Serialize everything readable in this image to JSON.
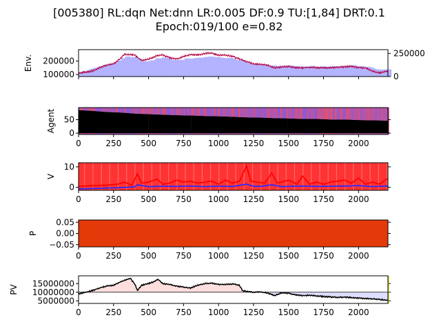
{
  "figure": {
    "title_line1": "[005380] RL:dqn Net:dnn LR:0.005 DF:0.9 TU:[1,84] DRT:0.1",
    "title_line2": "Epoch:019/100 e=0.82"
  },
  "chart_data": [
    {
      "type": "line",
      "id": "env",
      "ylabel": "Env.",
      "xlim": [
        0,
        2210
      ],
      "ylim": [
        85000,
        285000
      ],
      "yticks": [
        100000,
        200000
      ],
      "yticklabels": [
        "100000",
        "200000"
      ],
      "y2lim": [
        0,
        290000
      ],
      "y2ticks": [
        0,
        250000
      ],
      "y2ticklabels": [
        "0",
        "250000"
      ],
      "show_xticklabels": false,
      "series": [
        {
          "role": "price",
          "color": "#ff0000",
          "x": [
            0,
            100,
            150,
            200,
            250,
            300,
            330,
            400,
            450,
            500,
            560,
            600,
            650,
            700,
            750,
            800,
            850,
            900,
            950,
            1000,
            1050,
            1100,
            1150,
            1200,
            1250,
            1300,
            1350,
            1400,
            1450,
            1500,
            1550,
            1600,
            1650,
            1700,
            1750,
            1800,
            1850,
            1900,
            1950,
            2000,
            2050,
            2100,
            2150,
            2200
          ],
          "y": [
            110000,
            125000,
            150000,
            170000,
            180000,
            220000,
            250000,
            245000,
            205000,
            215000,
            240000,
            245000,
            225000,
            215000,
            235000,
            250000,
            245000,
            255000,
            260000,
            245000,
            245000,
            235000,
            215000,
            195000,
            180000,
            178000,
            170000,
            150000,
            155000,
            160000,
            152000,
            150000,
            155000,
            150000,
            148000,
            150000,
            155000,
            158000,
            160000,
            150000,
            148000,
            125000,
            112000,
            125000
          ]
        },
        {
          "role": "volume_bars",
          "color": "#b3b3ff",
          "x": [
            0,
            100,
            150,
            200,
            250,
            300,
            330,
            400,
            450,
            500,
            560,
            600,
            650,
            700,
            750,
            800,
            850,
            900,
            950,
            1000,
            1050,
            1100,
            1150,
            1200,
            1250,
            1300,
            1350,
            1400,
            1450,
            1500,
            1550,
            1600,
            1650,
            1700,
            1750,
            1800,
            1850,
            1900,
            1950,
            2000,
            2050,
            2100,
            2150,
            2200
          ],
          "y": [
            40000,
            90000,
            110000,
            130000,
            150000,
            190000,
            210000,
            200000,
            160000,
            170000,
            200000,
            200000,
            180000,
            170000,
            190000,
            200000,
            200000,
            210000,
            210000,
            200000,
            200000,
            185000,
            165000,
            140000,
            130000,
            125000,
            120000,
            110000,
            115000,
            115000,
            110000,
            105000,
            110000,
            108000,
            105000,
            110000,
            112000,
            115000,
            118000,
            108000,
            105000,
            80000,
            70000,
            80000
          ]
        }
      ]
    },
    {
      "type": "bar",
      "id": "agent",
      "ylabel": "Agent",
      "xlim": [
        0,
        2210
      ],
      "ylim": [
        -5,
        95
      ],
      "yticks": [
        0,
        50
      ],
      "yticklabels": [
        "0",
        "50"
      ],
      "xticks": [
        0,
        250,
        500,
        750,
        1000,
        1250,
        1500,
        1750,
        2000
      ],
      "xticklabels": [
        "0",
        "250",
        "500",
        "750",
        "1000",
        "1250",
        "1500",
        "1750",
        "2000"
      ],
      "series": [
        {
          "role": "holdings",
          "color": "#000000",
          "x": [
            0,
            100,
            200,
            300,
            400,
            500,
            600,
            700,
            800,
            900,
            1000,
            1100,
            1200,
            1300,
            1400,
            1500,
            1600,
            1700,
            1800,
            1900,
            2000,
            2100,
            2200
          ],
          "y": [
            85,
            82,
            78,
            76,
            72,
            70,
            68,
            66,
            65,
            63,
            62,
            60,
            58,
            57,
            55,
            54,
            52,
            52,
            50,
            50,
            48,
            47,
            46
          ]
        }
      ],
      "background": [
        "#d9527a",
        "#8a5ad9"
      ]
    },
    {
      "type": "line",
      "id": "value",
      "ylabel": "V",
      "xlim": [
        0,
        2210
      ],
      "ylim": [
        -1.5,
        12
      ],
      "yticks": [
        0,
        10
      ],
      "yticklabels": [
        "0",
        "10"
      ],
      "xticks": [
        0,
        250,
        500,
        750,
        1000,
        1250,
        1500,
        1750,
        2000
      ],
      "xticklabels": [
        "0",
        "250",
        "500",
        "750",
        "1000",
        "1250",
        "1500",
        "1750",
        "2000"
      ],
      "background": "#ff3333",
      "series": [
        {
          "role": "value_red",
          "color": "#ff0000",
          "x": [
            0,
            100,
            200,
            280,
            330,
            380,
            420,
            450,
            500,
            560,
            600,
            650,
            700,
            750,
            800,
            850,
            900,
            950,
            1000,
            1050,
            1100,
            1150,
            1200,
            1230,
            1280,
            1330,
            1380,
            1420,
            1500,
            1560,
            1600,
            1650,
            1700,
            1750,
            1800,
            1900,
            1950,
            2000,
            2050,
            2100,
            2150,
            2200
          ],
          "y": [
            0.5,
            0.8,
            1.0,
            1.5,
            2.5,
            1.0,
            6.5,
            2.0,
            2.5,
            4.0,
            1.5,
            2.0,
            3.5,
            2.5,
            3.0,
            2.0,
            2.5,
            3.0,
            1.5,
            3.5,
            2.0,
            3.0,
            10.5,
            3.0,
            2.5,
            2.0,
            7.0,
            2.0,
            3.5,
            1.5,
            5.5,
            1.5,
            2.5,
            1.5,
            2.5,
            3.5,
            2.0,
            4.5,
            1.5,
            2.5,
            1.5,
            4.0
          ]
        },
        {
          "role": "value_blue",
          "color": "#2a2aff",
          "x": [
            0,
            100,
            200,
            300,
            400,
            420,
            500,
            600,
            700,
            800,
            900,
            1000,
            1100,
            1200,
            1250,
            1300,
            1380,
            1450,
            1600,
            1700,
            1800,
            1900,
            2000,
            2100,
            2200
          ],
          "y": [
            -0.8,
            -0.6,
            -0.4,
            -0.2,
            0.2,
            1.2,
            0.3,
            0.5,
            0.4,
            0.6,
            0.3,
            0.5,
            0.4,
            1.5,
            0.5,
            0.4,
            1.2,
            0.3,
            0.6,
            0.4,
            0.5,
            0.6,
            0.8,
            0.3,
            0.6
          ]
        }
      ]
    },
    {
      "type": "heatmap",
      "id": "policy",
      "ylabel": "P",
      "xlim": [
        0,
        2210
      ],
      "ylim": [
        -0.06,
        0.06
      ],
      "yticks": [
        0.05,
        0.0,
        -0.05
      ],
      "yticklabels": [
        "0.05",
        "0.00",
        "−0.05"
      ],
      "xticks": [
        0,
        250,
        500,
        750,
        1000,
        1250,
        1500,
        1750,
        2000
      ],
      "xticklabels": [
        "0",
        "250",
        "500",
        "750",
        "1000",
        "1250",
        "1500",
        "1750",
        "2000"
      ],
      "fill": "#e43a0a"
    },
    {
      "type": "line",
      "id": "pv",
      "ylabel": "PV",
      "xlim": [
        0,
        2210
      ],
      "ylim": [
        3500000,
        19500000
      ],
      "yticks": [
        15000000,
        10000000,
        5000000
      ],
      "yticklabels": [
        "15000000",
        "10000000",
        "5000000"
      ],
      "xticks": [
        0,
        250,
        500,
        750,
        1000,
        1250,
        1500,
        1750,
        2000
      ],
      "xticklabels": [
        "0",
        "250",
        "500",
        "750",
        "1000",
        "1250",
        "1500",
        "1750",
        "2000"
      ],
      "baseline": 10000000,
      "series": [
        {
          "role": "portfolio_value",
          "color": "#000000",
          "x": [
            0,
            50,
            100,
            150,
            200,
            250,
            300,
            350,
            370,
            400,
            420,
            450,
            500,
            550,
            570,
            600,
            650,
            700,
            750,
            800,
            850,
            900,
            950,
            1000,
            1050,
            1100,
            1150,
            1170,
            1200,
            1250,
            1300,
            1350,
            1400,
            1450,
            1500,
            1550,
            1600,
            1650,
            1700,
            1750,
            1800,
            1850,
            1900,
            1950,
            2000,
            2050,
            2100,
            2150,
            2200
          ],
          "y": [
            9000000,
            10000000,
            11000000,
            12500000,
            13500000,
            14000000,
            16000000,
            17500000,
            18000000,
            15000000,
            11000000,
            14000000,
            15000000,
            16500000,
            17500000,
            15000000,
            14500000,
            13500000,
            13000000,
            12500000,
            14000000,
            15000000,
            15200000,
            14500000,
            14500000,
            14800000,
            14000000,
            11000000,
            10500000,
            10000000,
            10200000,
            9500000,
            8000000,
            9500000,
            9500000,
            8500000,
            8000000,
            8300000,
            7800000,
            7500000,
            7200000,
            7000000,
            7200000,
            6800000,
            6600000,
            6300000,
            6200000,
            5800000,
            5400000
          ]
        }
      ],
      "fill_above": "#ffdede",
      "fill_below": "#dedeff"
    }
  ]
}
